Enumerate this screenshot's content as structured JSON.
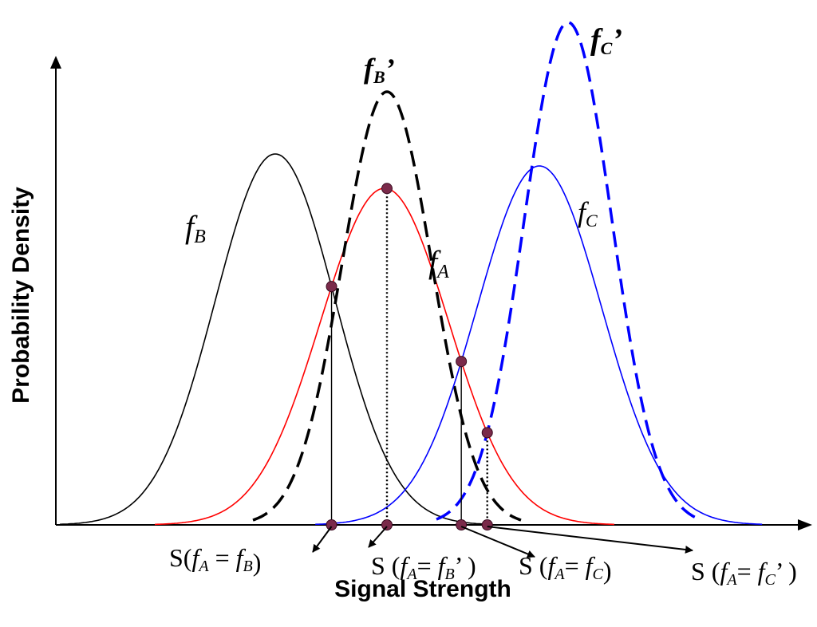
{
  "axes": {
    "x_label": "Signal Strength",
    "y_label": "Probability Density"
  },
  "chart_data": {
    "type": "line",
    "xlabel": "Signal Strength",
    "ylabel": "Probability Density",
    "series": [
      {
        "key": "fB",
        "name": "fB",
        "label_main": "f",
        "label_sub": "B",
        "label_prime": "",
        "color": "#000000",
        "style": "solid",
        "mean": 345,
        "sd": 75,
        "peak": 465
      },
      {
        "key": "fA",
        "name": "fA",
        "label_main": "f",
        "label_sub": "A",
        "label_prime": "",
        "color": "#ff0000",
        "style": "solid",
        "mean": 482,
        "sd": 80,
        "peak": 422
      },
      {
        "key": "fBp",
        "name": "fB'",
        "label_main": "f",
        "label_sub": "B",
        "label_prime": "’",
        "color": "#000000",
        "style": "dashed",
        "mean": 485,
        "sd": 56,
        "peak": 543
      },
      {
        "key": "fC",
        "name": "fC",
        "label_main": "f",
        "label_sub": "C",
        "label_prime": "",
        "color": "#0000ff",
        "style": "solid",
        "mean": 676,
        "sd": 78,
        "peak": 450
      },
      {
        "key": "fCp",
        "name": "fC'",
        "label_main": "f",
        "label_sub": "C",
        "label_prime": "’",
        "color": "#0000ff",
        "style": "dashed",
        "mean": 712,
        "sd": 55,
        "peak": 630
      }
    ]
  },
  "intersections": [
    {
      "key": "AB",
      "pair": [
        "fA",
        "fB"
      ],
      "label_a": "S(",
      "label_b": "f",
      "label_c": "A",
      "label_d": " = ",
      "label_e": "f",
      "label_f": "B",
      "label_g": "",
      "label_h": ")"
    },
    {
      "key": "ABp",
      "pair": [
        "fA",
        "fBp"
      ],
      "label_a": "S (",
      "label_b": "f",
      "label_c": "A",
      "label_d": "= ",
      "label_e": "f",
      "label_f": "B",
      "label_g": "’",
      "label_h": " )"
    },
    {
      "key": "AC",
      "pair": [
        "fA",
        "fC"
      ],
      "label_a": "S (",
      "label_b": "f",
      "label_c": "A",
      "label_d": "= ",
      "label_e": "f",
      "label_f": "C",
      "label_g": "",
      "label_h": ")"
    },
    {
      "key": "ACp",
      "pair": [
        "fA",
        "fCp"
      ],
      "label_a": "S (",
      "label_b": "f",
      "label_c": "A",
      "label_d": "= ",
      "label_e": "f",
      "label_f": "C",
      "label_g": "’",
      "label_h": " )"
    }
  ],
  "colors": {
    "axis": "#000000",
    "marker": "#7a2a4a",
    "marker_stroke": "#3a0a20"
  }
}
